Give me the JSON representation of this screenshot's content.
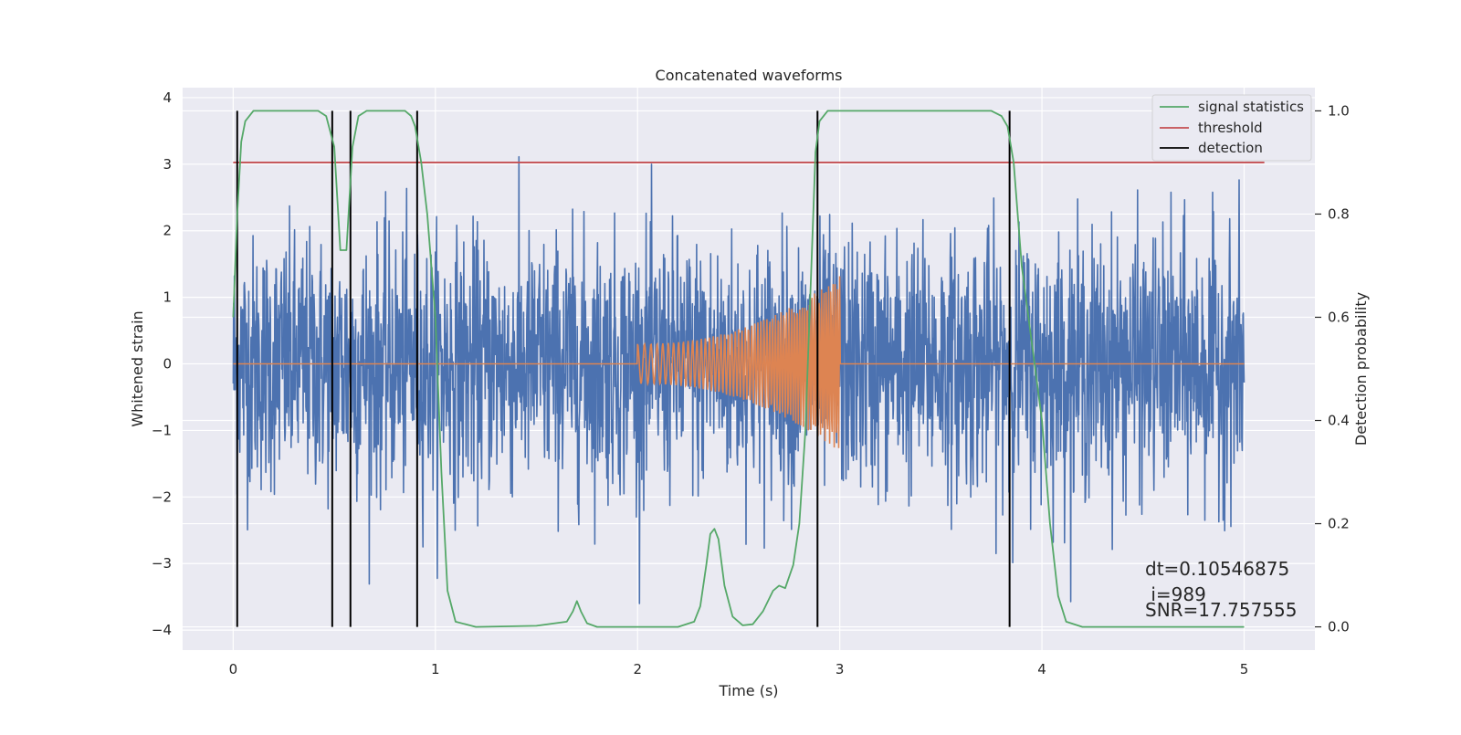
{
  "chart_data": {
    "type": "line",
    "title": "Concatenated waveforms",
    "xlabel": "Time (s)",
    "ylabel": "Whitened strain",
    "ylabel_right": "Detection probability",
    "xlim": [
      -0.25,
      5.35
    ],
    "ylim": [
      -4.3,
      4.15
    ],
    "ylim_right": [
      -0.045,
      1.045
    ],
    "x_ticks": [
      0,
      1,
      2,
      3,
      4,
      5
    ],
    "y_ticks": [
      -4,
      -3,
      -2,
      -1,
      0,
      1,
      2,
      3,
      4
    ],
    "y_ticks_right": [
      0.0,
      0.2,
      0.4,
      0.6,
      0.8,
      1.0
    ],
    "x_tick_labels": [
      "0",
      "1",
      "2",
      "3",
      "4",
      "5"
    ],
    "y_tick_labels": [
      "−4",
      "−3",
      "−2",
      "−1",
      "0",
      "1",
      "2",
      "3",
      "4"
    ],
    "y_tick_labels_right": [
      "0.0",
      "0.2",
      "0.4",
      "0.6",
      "0.8",
      "1.0"
    ],
    "grid": true,
    "legend_position": "top-right",
    "legend": [
      {
        "label": "signal statistics",
        "color": "#55a868"
      },
      {
        "label": "threshold",
        "color": "#c44e52"
      },
      {
        "label": "detection",
        "color": "#000000"
      }
    ],
    "colors": {
      "strain": "#4c72b0",
      "injection": "#dd8452",
      "signal_statistics": "#55a868",
      "threshold": "#c44e52",
      "detection": "#000000",
      "axes_background": "#eaeaf2",
      "grid": "#ffffff"
    },
    "strain_noise": {
      "x_range": [
        0,
        5
      ],
      "typical_amplitude": 1.0,
      "max_abs": 3.6
    },
    "injection": {
      "x_range": [
        2.0,
        3.0
      ],
      "amplitude_start": 0.35,
      "amplitude_end": 1.55,
      "offset_elsewhere": 0
    },
    "threshold": {
      "value": 0.9,
      "x_range": [
        0,
        5.1
      ]
    },
    "detections_x": [
      0.02,
      0.49,
      0.58,
      0.91,
      2.89,
      3.84
    ],
    "signal_statistics": {
      "x": [
        0.0,
        0.02,
        0.04,
        0.06,
        0.1,
        0.2,
        0.35,
        0.42,
        0.46,
        0.5,
        0.53,
        0.56,
        0.59,
        0.62,
        0.66,
        0.75,
        0.85,
        0.88,
        0.9,
        0.93,
        0.96,
        1.0,
        1.03,
        1.06,
        1.1,
        1.2,
        1.5,
        1.65,
        1.68,
        1.7,
        1.72,
        1.75,
        1.8,
        2.0,
        2.2,
        2.28,
        2.31,
        2.34,
        2.36,
        2.38,
        2.4,
        2.43,
        2.47,
        2.52,
        2.57,
        2.62,
        2.67,
        2.7,
        2.73,
        2.77,
        2.8,
        2.83,
        2.86,
        2.88,
        2.9,
        2.94,
        3.0,
        3.2,
        3.6,
        3.75,
        3.8,
        3.83,
        3.86,
        3.9,
        3.95,
        4.0,
        4.04,
        4.08,
        4.12,
        4.2,
        4.5,
        5.0
      ],
      "y": [
        0.6,
        0.8,
        0.94,
        0.98,
        1.0,
        1.0,
        1.0,
        1.0,
        0.99,
        0.93,
        0.73,
        0.73,
        0.93,
        0.99,
        1.0,
        1.0,
        1.0,
        0.99,
        0.97,
        0.9,
        0.8,
        0.6,
        0.3,
        0.07,
        0.01,
        0.0,
        0.002,
        0.01,
        0.03,
        0.05,
        0.03,
        0.007,
        0.0,
        0.0,
        0.0,
        0.01,
        0.04,
        0.12,
        0.18,
        0.19,
        0.17,
        0.08,
        0.02,
        0.003,
        0.005,
        0.03,
        0.07,
        0.08,
        0.075,
        0.12,
        0.2,
        0.38,
        0.7,
        0.92,
        0.98,
        1.0,
        1.0,
        1.0,
        1.0,
        1.0,
        0.99,
        0.97,
        0.9,
        0.7,
        0.55,
        0.4,
        0.2,
        0.06,
        0.01,
        0.0,
        0.0,
        0.0
      ]
    },
    "annotations": [
      "dt=0.10546875",
      " i=989",
      "SNR=17.757555"
    ]
  }
}
